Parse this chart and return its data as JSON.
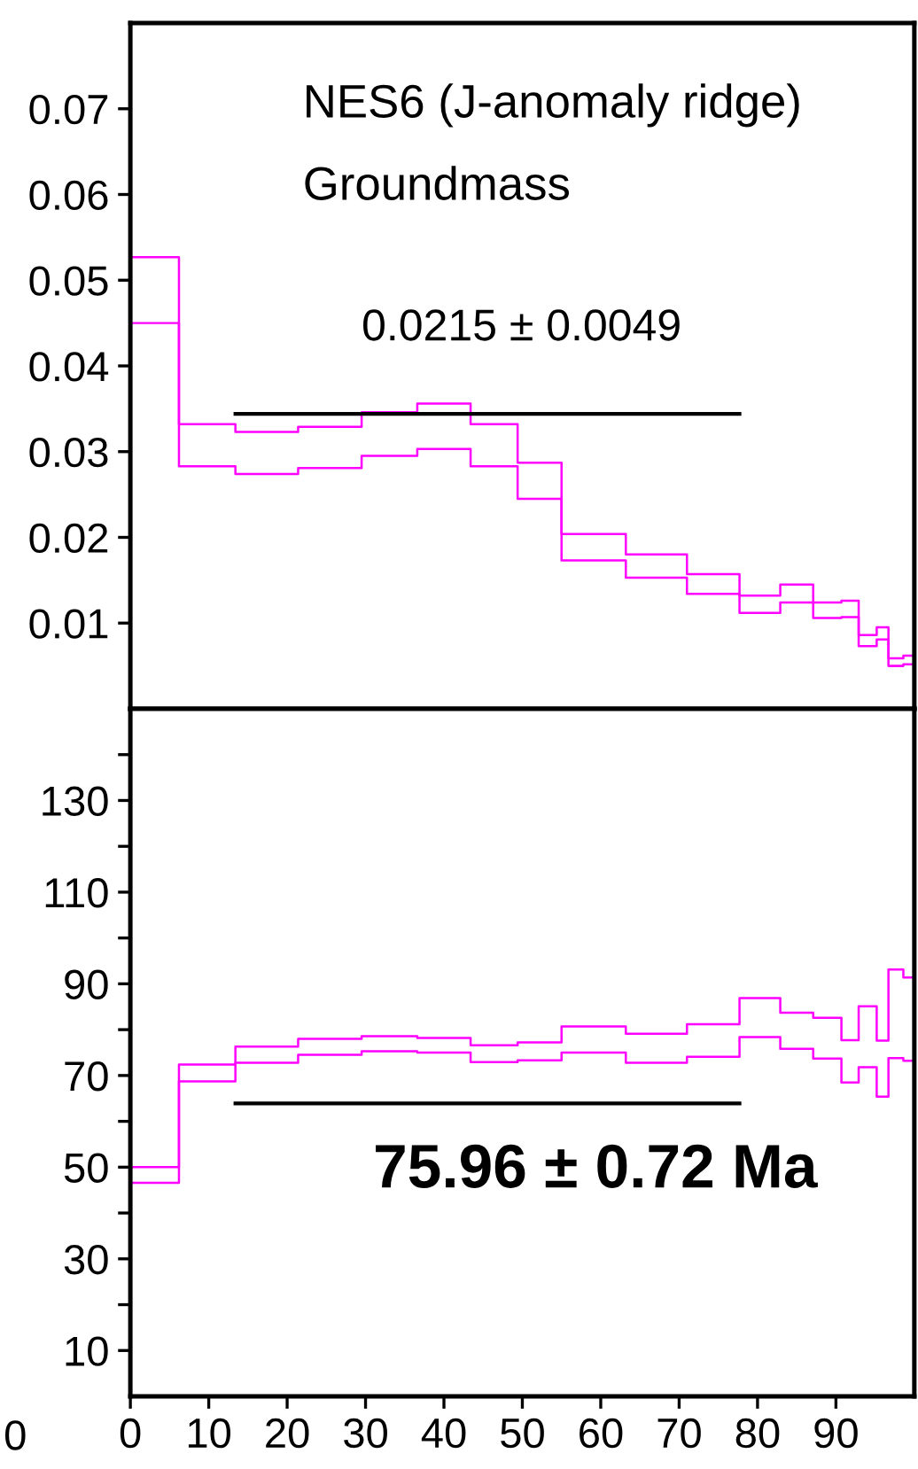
{
  "chart_data": [
    {
      "type": "step",
      "tick_labels": "y",
      "xlim": [
        0,
        100
      ],
      "ylim": [
        0,
        0.08
      ],
      "yticks": [
        0.01,
        0.02,
        0.03,
        0.04,
        0.05,
        0.06,
        0.07
      ],
      "grid": false,
      "legend": false,
      "annotations": [
        "NES6 (J-anomaly ridge)",
        "Groundmass",
        "0.0215 ± 0.0049"
      ],
      "series": [
        {
          "color": "#ff00ff",
          "x": [
            0,
            6.2,
            13.4,
            21.4,
            29.5,
            36.6,
            43.4,
            49.4,
            55.0,
            63.2,
            71.0,
            77.7,
            82.9,
            87.1,
            90.7,
            92.9,
            95.2,
            96.7,
            98.6,
            100
          ],
          "values": [
            0.0527,
            0.0332,
            0.0323,
            0.0329,
            0.0346,
            0.0356,
            0.0332,
            0.0287,
            0.0204,
            0.018,
            0.0157,
            0.0132,
            0.0145,
            0.0124,
            0.0126,
            0.0086,
            0.0095,
            0.0059,
            0.0062,
            0.0062
          ]
        },
        {
          "color": "#ff00ff",
          "x": [
            0,
            6.2,
            13.4,
            21.4,
            29.5,
            36.6,
            43.4,
            49.4,
            55.0,
            63.2,
            71.0,
            77.7,
            82.9,
            87.1,
            90.7,
            92.9,
            95.2,
            96.7,
            98.6,
            100
          ],
          "values": [
            0.045,
            0.0283,
            0.0274,
            0.0281,
            0.0295,
            0.0303,
            0.0283,
            0.0245,
            0.0173,
            0.0153,
            0.0134,
            0.0112,
            0.0124,
            0.0106,
            0.0107,
            0.0073,
            0.0081,
            0.005,
            0.0052,
            0.0052
          ]
        },
        {
          "type": "line",
          "color": "#000000",
          "x": [
            13.4,
            77.7
          ],
          "values": [
            0.0344,
            0.0344
          ]
        }
      ]
    },
    {
      "type": "step",
      "xlim": [
        0,
        100
      ],
      "ylim": [
        0,
        150
      ],
      "xticks": [
        0,
        10,
        20,
        30,
        40,
        50,
        60,
        70,
        80,
        90
      ],
      "yticks": [
        10,
        {
          "value": 20,
          "label": null
        },
        30,
        {
          "value": 40,
          "label": null
        },
        50,
        {
          "value": 60,
          "label": null
        },
        70,
        {
          "value": 80,
          "label": null
        },
        90,
        {
          "value": 100,
          "label": null
        },
        110,
        {
          "value": 120,
          "label": null
        },
        130,
        {
          "value": 140,
          "label": null
        }
      ],
      "grid": false,
      "legend": false,
      "annotations": [
        "75.96 ± 0.72 Ma",
        "0"
      ],
      "series": [
        {
          "color": "#ff00ff",
          "x": [
            0,
            6.2,
            13.4,
            21.4,
            29.5,
            36.6,
            43.4,
            49.4,
            55.0,
            63.2,
            71.0,
            77.7,
            82.9,
            87.1,
            90.7,
            92.9,
            95.2,
            96.7,
            98.6,
            100
          ],
          "values": [
            50.0,
            72.4,
            76.3,
            78.0,
            78.6,
            78.2,
            76.6,
            77.2,
            80.7,
            79.1,
            81.2,
            86.9,
            83.7,
            82.6,
            77.7,
            85.1,
            77.6,
            93.1,
            91.4,
            91.4
          ]
        },
        {
          "color": "#ff00ff",
          "x": [
            0,
            6.2,
            13.4,
            21.4,
            29.5,
            36.6,
            43.4,
            49.4,
            55.0,
            63.2,
            71.0,
            77.7,
            82.9,
            87.1,
            90.7,
            92.9,
            95.2,
            96.7,
            98.6,
            100
          ],
          "values": [
            46.6,
            68.7,
            72.8,
            74.5,
            75.3,
            75.0,
            72.9,
            73.3,
            75.0,
            72.8,
            74.1,
            78.4,
            75.8,
            73.7,
            68.5,
            71.8,
            65.4,
            73.8,
            73.2,
            73.2
          ]
        },
        {
          "type": "line",
          "color": "#000000",
          "x": [
            13.4,
            77.7
          ],
          "values": [
            63.9,
            63.9
          ]
        }
      ]
    }
  ]
}
